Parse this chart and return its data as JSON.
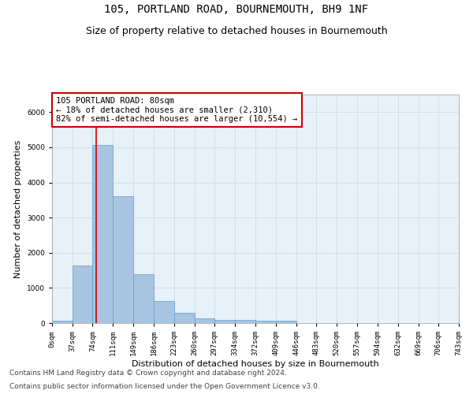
{
  "title": "105, PORTLAND ROAD, BOURNEMOUTH, BH9 1NF",
  "subtitle": "Size of property relative to detached houses in Bournemouth",
  "xlabel": "Distribution of detached houses by size in Bournemouth",
  "ylabel": "Number of detached properties",
  "footer_line1": "Contains HM Land Registry data © Crown copyright and database right 2024.",
  "footer_line2": "Contains public sector information licensed under the Open Government Licence v3.0.",
  "bar_left_edges": [
    0,
    37,
    74,
    111,
    149,
    186,
    223,
    260,
    297,
    334,
    372,
    409,
    446,
    483,
    520,
    557,
    594,
    632,
    669,
    706
  ],
  "bar_widths": [
    37,
    37,
    37,
    38,
    37,
    37,
    37,
    37,
    37,
    38,
    37,
    37,
    37,
    37,
    37,
    37,
    38,
    37,
    37,
    37
  ],
  "bar_heights": [
    70,
    1630,
    5060,
    3600,
    1400,
    620,
    290,
    140,
    100,
    85,
    60,
    70,
    0,
    0,
    0,
    0,
    0,
    0,
    0,
    0
  ],
  "bar_color": "#a8c4e0",
  "bar_edge_color": "#5a9fd4",
  "property_line_x": 80,
  "property_line_color": "#cc0000",
  "annotation_box_text": "105 PORTLAND ROAD: 80sqm\n← 18% of detached houses are smaller (2,310)\n82% of semi-detached houses are larger (10,554) →",
  "annotation_box_color": "white",
  "annotation_box_edgecolor": "#cc0000",
  "ylim": [
    0,
    6500
  ],
  "xlim": [
    0,
    743
  ],
  "x_tick_positions": [
    0,
    37,
    74,
    111,
    149,
    186,
    223,
    260,
    297,
    334,
    372,
    409,
    446,
    483,
    520,
    557,
    594,
    632,
    669,
    706,
    743
  ],
  "x_tick_labels": [
    "0sqm",
    "37sqm",
    "74sqm",
    "111sqm",
    "149sqm",
    "186sqm",
    "223sqm",
    "260sqm",
    "297sqm",
    "334sqm",
    "372sqm",
    "409sqm",
    "446sqm",
    "483sqm",
    "520sqm",
    "557sqm",
    "594sqm",
    "632sqm",
    "669sqm",
    "706sqm",
    "743sqm"
  ],
  "grid_color": "#c8d8e8",
  "background_color": "#e8f0f8",
  "title_fontsize": 10,
  "subtitle_fontsize": 9,
  "axis_label_fontsize": 8,
  "tick_fontsize": 6.5,
  "annotation_fontsize": 7.5,
  "footer_fontsize": 6.5
}
